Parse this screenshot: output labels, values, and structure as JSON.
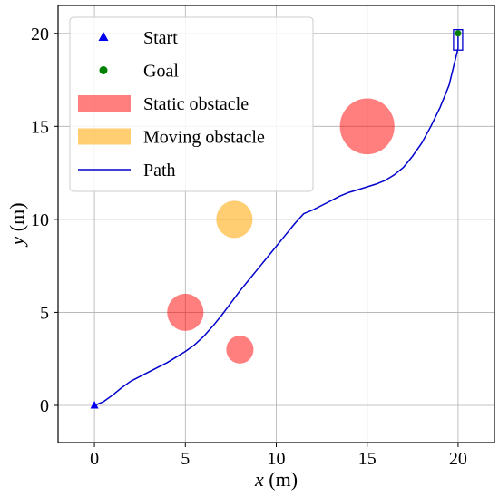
{
  "chart_data": {
    "type": "scatter",
    "xlabel": {
      "var": "x",
      "unit": " (m)"
    },
    "ylabel": {
      "var": "y",
      "unit": " (m)"
    },
    "xlim": [
      -2,
      22
    ],
    "ylim": [
      -2,
      21.5
    ],
    "xticks": [
      0,
      5,
      10,
      15,
      20
    ],
    "yticks": [
      0,
      5,
      10,
      15,
      20
    ],
    "grid": true,
    "legend_position": "top-left",
    "colors": {
      "start": "#0000ee",
      "goal": "#008000",
      "static": "#ff0000",
      "moving": "#ffa500",
      "path": "#0000cc"
    },
    "legend": [
      {
        "key": "start",
        "label": "Start"
      },
      {
        "key": "goal",
        "label": "Goal"
      },
      {
        "key": "static",
        "label": "Static obstacle"
      },
      {
        "key": "moving",
        "label": "Moving obstacle"
      },
      {
        "key": "path",
        "label": "Path"
      }
    ],
    "start": {
      "x": 0,
      "y": 0
    },
    "goal": {
      "x": 20,
      "y": 20
    },
    "static_obstacles": [
      {
        "x": 15,
        "y": 15,
        "r": 1.5
      },
      {
        "x": 5,
        "y": 5,
        "r": 1.0
      },
      {
        "x": 8,
        "y": 3,
        "r": 0.75
      }
    ],
    "moving_obstacles": [
      {
        "x": 7.7,
        "y": 10,
        "r": 1.0
      }
    ],
    "vehicle": {
      "x": 20,
      "y": 19.65,
      "width": 0.5,
      "height": 1.1
    },
    "path": [
      [
        0,
        0
      ],
      [
        0.5,
        0.2
      ],
      [
        1,
        0.55
      ],
      [
        1.5,
        0.95
      ],
      [
        2,
        1.3
      ],
      [
        2.5,
        1.55
      ],
      [
        3,
        1.8
      ],
      [
        3.5,
        2.05
      ],
      [
        4,
        2.3
      ],
      [
        4.5,
        2.6
      ],
      [
        5,
        2.9
      ],
      [
        5.5,
        3.25
      ],
      [
        6,
        3.7
      ],
      [
        6.5,
        4.25
      ],
      [
        7,
        4.85
      ],
      [
        7.5,
        5.5
      ],
      [
        8,
        6.15
      ],
      [
        8.5,
        6.75
      ],
      [
        9,
        7.35
      ],
      [
        9.5,
        7.95
      ],
      [
        10,
        8.55
      ],
      [
        10.5,
        9.15
      ],
      [
        11,
        9.75
      ],
      [
        11.5,
        10.3
      ],
      [
        12,
        10.5
      ],
      [
        12.5,
        10.75
      ],
      [
        13,
        11
      ],
      [
        13.5,
        11.25
      ],
      [
        14,
        11.45
      ],
      [
        14.5,
        11.6
      ],
      [
        15,
        11.75
      ],
      [
        15.5,
        11.9
      ],
      [
        16,
        12.1
      ],
      [
        16.5,
        12.4
      ],
      [
        17,
        12.8
      ],
      [
        17.5,
        13.4
      ],
      [
        18,
        14.1
      ],
      [
        18.5,
        15
      ],
      [
        19,
        16
      ],
      [
        19.5,
        17.2
      ],
      [
        19.8,
        18.4
      ],
      [
        20,
        19.2
      ],
      [
        20,
        20
      ]
    ]
  }
}
